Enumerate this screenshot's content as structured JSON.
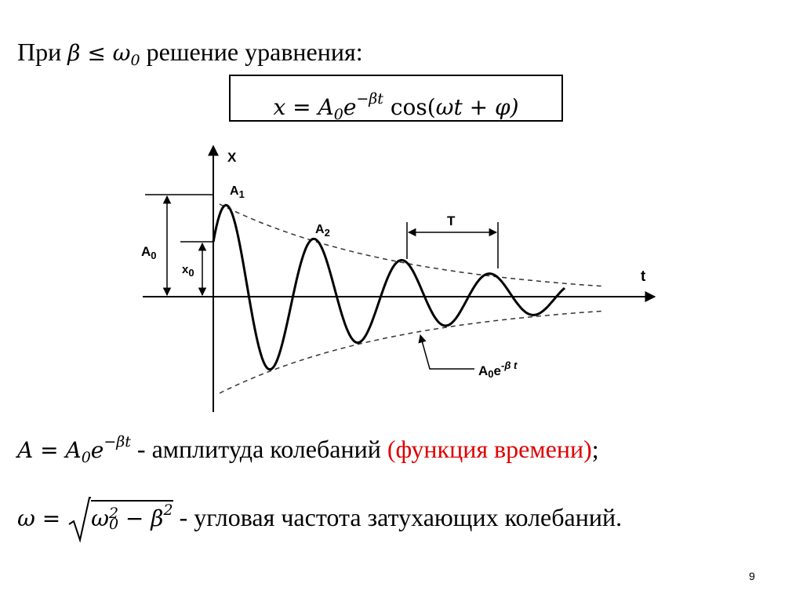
{
  "intro": [
    "При ",
    "β ≤ ω",
    "0",
    " решение уравнения:"
  ],
  "equation": [
    "x = A",
    "0",
    "e",
    "−βt",
    " cos(",
    "ωt + φ)"
  ],
  "graph": {
    "y_axis": "X",
    "x_axis": "t",
    "a0": [
      "A",
      "0"
    ],
    "x0": [
      "x",
      "0"
    ],
    "a1": [
      "A",
      "1"
    ],
    "a2": [
      "A",
      "2"
    ],
    "period": "T",
    "envelope": [
      "A",
      "0",
      "e",
      "-β t"
    ]
  },
  "amplitude": [
    "A = A",
    "0",
    "e",
    "−βt",
    " - амплитуда колебаний ",
    "(функция времени)",
    ";"
  ],
  "frequency": [
    "ω = ",
    "ω",
    "2",
    "0",
    " − β",
    "2",
    " - угловая частота затухающих колебаний."
  ],
  "page_number": "9"
}
